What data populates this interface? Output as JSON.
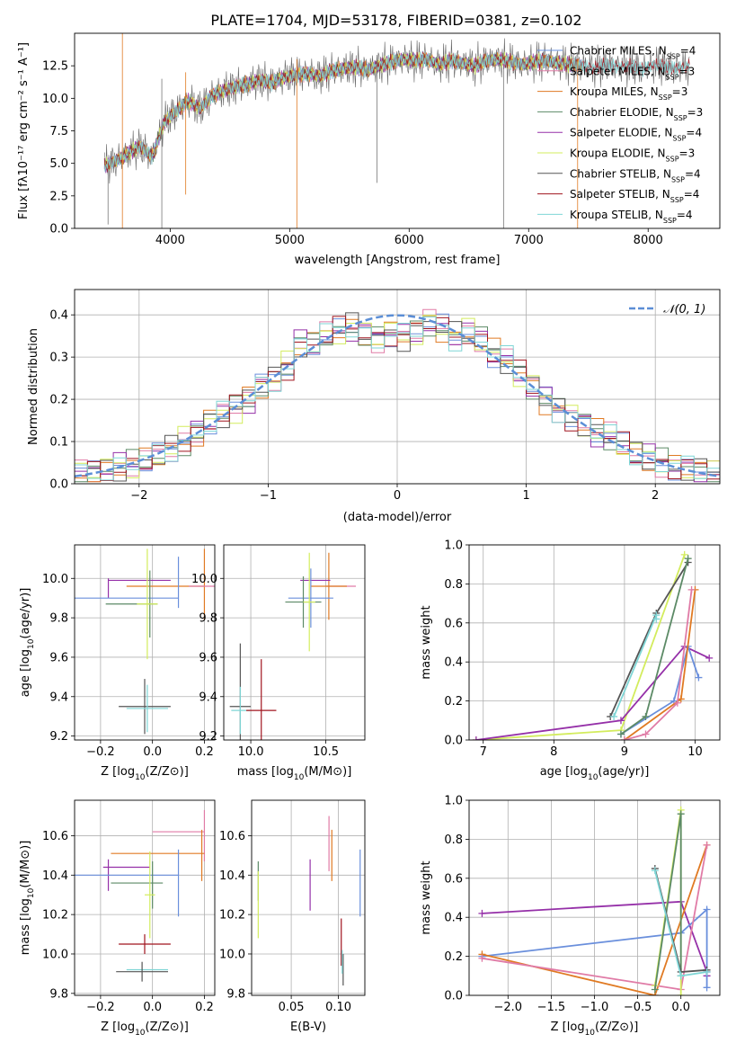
{
  "title": "PLATE=1704, MJD=53178, FIBERID=0381, z=0.102",
  "colors": {
    "chabrier_miles": "#6a8fdc",
    "salpeter_miles": "#e07ba6",
    "kroupa_miles": "#e07a23",
    "chabrier_elodie": "#5c8a66",
    "salpeter_elodie": "#9530a8",
    "kroupa_elodie": "#d3ec5d",
    "chabrier_stelib": "#555555",
    "salpeter_stelib": "#a0141e",
    "kroupa_stelib": "#7fd6d6",
    "normal": "#5b8ed6"
  },
  "legend": [
    {
      "label": "Chabrier MILES, N",
      "sub": "SSP",
      "tail": "=4",
      "key": "chabrier_miles"
    },
    {
      "label": "Salpeter MILES, N",
      "sub": "SSP",
      "tail": "=3",
      "key": "salpeter_miles"
    },
    {
      "label": "Kroupa MILES, N",
      "sub": "SSP",
      "tail": "=3",
      "key": "kroupa_miles"
    },
    {
      "label": "Chabrier ELODIE, N",
      "sub": "SSP",
      "tail": "=3",
      "key": "chabrier_elodie"
    },
    {
      "label": "Salpeter ELODIE, N",
      "sub": "SSP",
      "tail": "=4",
      "key": "salpeter_elodie"
    },
    {
      "label": "Kroupa ELODIE, N",
      "sub": "SSP",
      "tail": "=3",
      "key": "kroupa_elodie"
    },
    {
      "label": "Chabrier STELIB, N",
      "sub": "SSP",
      "tail": "=4",
      "key": "chabrier_stelib"
    },
    {
      "label": "Salpeter STELIB, N",
      "sub": "SSP",
      "tail": "=4",
      "key": "salpeter_stelib"
    },
    {
      "label": "Kroupa STELIB, N",
      "sub": "SSP",
      "tail": "=4",
      "key": "kroupa_stelib"
    }
  ],
  "chart_data": [
    {
      "id": "spectrum",
      "type": "line",
      "xlabel": "wavelength [Angstrom, rest frame]",
      "ylabel": "Flux [fλ10⁻¹⁷ erg cm⁻² s⁻¹ A⁻¹]",
      "xlim": [
        3200,
        8600
      ],
      "ylim": [
        0,
        15
      ],
      "xticks": [
        4000,
        5000,
        6000,
        7000,
        8000
      ],
      "xtick_labels": [
        "4000",
        "5000",
        "6000",
        "7000",
        "8000"
      ],
      "yticks": [
        0,
        2.5,
        5,
        7.5,
        10,
        12.5
      ],
      "ytick_labels": [
        "0.0",
        "2.5",
        "5.0",
        "7.5",
        "10.0",
        "12.5"
      ],
      "x": [
        3450,
        3550,
        3650,
        3750,
        3850,
        3950,
        4050,
        4150,
        4250,
        4350,
        4450,
        4550,
        4650,
        4750,
        4850,
        4950,
        5050,
        5150,
        5250,
        5350,
        5450,
        5550,
        5650,
        5750,
        5850,
        5950,
        6050,
        6150,
        6250,
        6350,
        6450,
        6550,
        6650,
        6750,
        6850,
        6950,
        7050,
        7150,
        7250,
        7350,
        7450,
        7550,
        7650,
        7750,
        7850,
        7950,
        8050,
        8150,
        8250,
        8350
      ],
      "y": [
        4.8,
        5.2,
        5.8,
        6.3,
        5.5,
        8.2,
        9.0,
        9.8,
        9.2,
        10.2,
        10.6,
        10.9,
        11.1,
        11.4,
        11.2,
        11.6,
        11.8,
        11.9,
        11.7,
        12.1,
        12.3,
        12.4,
        12.2,
        12.5,
        12.8,
        13.0,
        12.9,
        13.0,
        12.6,
        12.9,
        12.7,
        12.5,
        12.9,
        13.0,
        12.8,
        12.6,
        12.8,
        12.9,
        12.7,
        12.6,
        12.5,
        12.3,
        12.6,
        12.4,
        12.5,
        12.2,
        12.6,
        12.4,
        12.3,
        12.5
      ],
      "legend_position": "upper-right"
    },
    {
      "id": "residuals",
      "type": "histogram",
      "xlabel": "(data-model)/error",
      "ylabel": "Normed distribution",
      "xlim": [
        -2.5,
        2.5
      ],
      "ylim": [
        0,
        0.46
      ],
      "xticks": [
        -2,
        -1,
        0,
        1,
        2
      ],
      "xtick_labels": [
        "−2",
        "−1",
        "0",
        "1",
        "2"
      ],
      "yticks": [
        0,
        0.1,
        0.2,
        0.3,
        0.4
      ],
      "ytick_labels": [
        "0.0",
        "0.1",
        "0.2",
        "0.3",
        "0.4"
      ],
      "bin_edges": [
        -2.5,
        -2.4,
        -2.3,
        -2.2,
        -2.1,
        -2.0,
        -1.9,
        -1.8,
        -1.7,
        -1.6,
        -1.5,
        -1.4,
        -1.3,
        -1.2,
        -1.1,
        -1.0,
        -0.9,
        -0.8,
        -0.7,
        -0.6,
        -0.5,
        -0.4,
        -0.3,
        -0.2,
        -0.1,
        0.0,
        0.1,
        0.2,
        0.3,
        0.4,
        0.5,
        0.6,
        0.7,
        0.8,
        0.9,
        1.0,
        1.1,
        1.2,
        1.3,
        1.4,
        1.5,
        1.6,
        1.7,
        1.8,
        1.9,
        2.0,
        2.1,
        2.2,
        2.3,
        2.4,
        2.5
      ],
      "values": [
        0.025,
        0.028,
        0.035,
        0.04,
        0.045,
        0.055,
        0.065,
        0.08,
        0.1,
        0.12,
        0.15,
        0.165,
        0.18,
        0.2,
        0.23,
        0.25,
        0.28,
        0.33,
        0.33,
        0.35,
        0.36,
        0.37,
        0.355,
        0.345,
        0.36,
        0.35,
        0.36,
        0.38,
        0.365,
        0.35,
        0.36,
        0.34,
        0.31,
        0.29,
        0.26,
        0.23,
        0.2,
        0.18,
        0.16,
        0.14,
        0.12,
        0.11,
        0.09,
        0.07,
        0.06,
        0.05,
        0.04,
        0.035,
        0.03,
        0.025
      ],
      "normal_label": "𝒩(0, 1)",
      "legend_position": "upper-right"
    },
    {
      "id": "age-metallicity",
      "type": "errorbar",
      "xlabel_main": "Z [log",
      "xlabel_sub": "10",
      "xlabel_tail": "(Z/Z⊙)]",
      "ylabel_main": "age  [log",
      "ylabel_sub": "10",
      "ylabel_tail": "(age/yr)]",
      "xlim": [
        -0.3,
        0.24
      ],
      "ylim": [
        9.18,
        10.17
      ],
      "xticks": [
        -0.2,
        0.0,
        0.2
      ],
      "xtick_labels": [
        "−0.2",
        "0.0",
        "0.2"
      ],
      "yticks": [
        9.2,
        9.4,
        9.6,
        9.8,
        10.0
      ],
      "ytick_labels": [
        "9.2",
        "9.4",
        "9.6",
        "9.8",
        "10.0"
      ],
      "points": [
        {
          "key": "salpeter_elodie",
          "x": -0.05,
          "y": 9.99,
          "xerr": 0.12,
          "yerr": 0.0
        },
        {
          "key": "salpeter_elodie",
          "x": -0.17,
          "y": 9.95,
          "xerr": 0.0,
          "yerr": 0.05
        },
        {
          "key": "kroupa_miles",
          "x": 0.05,
          "y": 9.96,
          "xerr": 0.15,
          "yerr": 0.0
        },
        {
          "key": "kroupa_miles",
          "x": 0.2,
          "y": 9.97,
          "xerr": 0.0,
          "yerr": 0.18
        },
        {
          "key": "chabrier_miles",
          "x": -0.1,
          "y": 9.9,
          "xerr": 0.2,
          "yerr": 0.0
        },
        {
          "key": "chabrier_miles",
          "x": 0.1,
          "y": 9.98,
          "xerr": 0.0,
          "yerr": 0.13
        },
        {
          "key": "chabrier_elodie",
          "x": -0.08,
          "y": 9.87,
          "xerr": 0.1,
          "yerr": 0.0
        },
        {
          "key": "chabrier_elodie",
          "x": -0.01,
          "y": 9.87,
          "xerr": 0.0,
          "yerr": 0.17
        },
        {
          "key": "kroupa_elodie",
          "x": -0.02,
          "y": 9.87,
          "xerr": 0.04,
          "yerr": 0.28
        },
        {
          "key": "chabrier_stelib",
          "x": -0.03,
          "y": 9.35,
          "xerr": 0.1,
          "yerr": 0.14
        },
        {
          "key": "kroupa_stelib",
          "x": -0.02,
          "y": 9.34,
          "xerr": 0.08,
          "yerr": 0.12
        },
        {
          "key": "salpeter_miles",
          "x": 0.19,
          "y": 9.96,
          "xerr": 0.05,
          "yerr": 0.0
        }
      ]
    },
    {
      "id": "age-mass",
      "type": "errorbar",
      "xlabel_main": "mass [log",
      "xlabel_sub": "10",
      "xlabel_tail": "(M/M⊙)]",
      "xlim": [
        9.82,
        10.76
      ],
      "ylim": [
        9.18,
        10.17
      ],
      "xticks": [
        10.0,
        10.5
      ],
      "xtick_labels": [
        "10.0",
        "10.5"
      ],
      "yticks": [
        9.2,
        9.4,
        9.6,
        9.8,
        10.0
      ],
      "ytick_labels": [
        "9.2",
        "9.4",
        "9.6",
        "9.8",
        "10.0"
      ],
      "points": [
        {
          "key": "salpeter_miles",
          "x": 10.6,
          "y": 9.96,
          "xerr": 0.1,
          "yerr": 0.0
        },
        {
          "key": "kroupa_miles",
          "x": 10.52,
          "y": 9.96,
          "xerr": 0.12,
          "yerr": 0.17
        },
        {
          "key": "salpeter_elodie",
          "x": 10.43,
          "y": 9.99,
          "xerr": 0.1,
          "yerr": 0.0
        },
        {
          "key": "chabrier_miles",
          "x": 10.4,
          "y": 9.9,
          "xerr": 0.15,
          "yerr": 0.15
        },
        {
          "key": "chabrier_elodie",
          "x": 10.35,
          "y": 9.88,
          "xerr": 0.12,
          "yerr": 0.13
        },
        {
          "key": "kroupa_elodie",
          "x": 10.39,
          "y": 9.88,
          "xerr": 0.04,
          "yerr": 0.25
        },
        {
          "key": "chabrier_stelib",
          "x": 9.93,
          "y": 9.35,
          "xerr": 0.07,
          "yerr": 0.32
        },
        {
          "key": "kroupa_stelib",
          "x": 9.93,
          "y": 9.33,
          "xerr": 0.06,
          "yerr": 0.12
        },
        {
          "key": "salpeter_stelib",
          "x": 10.07,
          "y": 9.33,
          "xerr": 0.1,
          "yerr": 0.26
        }
      ]
    },
    {
      "id": "weight-age",
      "type": "line",
      "xlabel_main": "age  [log",
      "xlabel_sub": "10",
      "xlabel_tail": "(age/yr)]",
      "ylabel": "mass weight",
      "xlim": [
        6.8,
        10.35
      ],
      "ylim": [
        0,
        1.0
      ],
      "xticks": [
        7,
        8,
        9,
        10
      ],
      "xtick_labels": [
        "7",
        "8",
        "9",
        "10"
      ],
      "yticks": [
        0,
        0.2,
        0.4,
        0.6,
        0.8,
        1.0
      ],
      "ytick_labels": [
        "0.0",
        "0.2",
        "0.4",
        "0.6",
        "0.8",
        "1.0"
      ],
      "series": [
        {
          "key": "kroupa_elodie",
          "x": [
            6.9,
            8.95,
            9.85
          ],
          "y": [
            0.0,
            0.05,
            0.95
          ]
        },
        {
          "key": "chabrier_stelib",
          "x": [
            8.8,
            9.45,
            9.9
          ],
          "y": [
            0.12,
            0.65,
            0.91
          ]
        },
        {
          "key": "salpeter_elodie",
          "x": [
            6.9,
            8.95,
            9.85,
            10.2
          ],
          "y": [
            0.0,
            0.1,
            0.48,
            0.42
          ]
        },
        {
          "key": "chabrier_miles",
          "x": [
            8.95,
            9.7,
            9.9,
            10.05
          ],
          "y": [
            0.03,
            0.2,
            0.48,
            0.32
          ]
        },
        {
          "key": "kroupa_miles",
          "x": [
            9.0,
            9.8,
            10.0
          ],
          "y": [
            0.0,
            0.21,
            0.77
          ]
        },
        {
          "key": "salpeter_miles",
          "x": [
            9.0,
            9.3,
            9.75,
            9.95
          ],
          "y": [
            0.0,
            0.03,
            0.19,
            0.77
          ]
        },
        {
          "key": "chabrier_elodie",
          "x": [
            8.95,
            9.3,
            9.9
          ],
          "y": [
            0.03,
            0.12,
            0.93
          ]
        },
        {
          "key": "kroupa_stelib",
          "x": [
            8.85,
            9.45,
            9.45
          ],
          "y": [
            0.12,
            0.64,
            0.62
          ]
        }
      ]
    },
    {
      "id": "mass-metallicity",
      "type": "errorbar",
      "xlabel_main": "Z [log",
      "xlabel_sub": "10",
      "xlabel_tail": "(Z/Z⊙)]",
      "ylabel_main": "mass [log",
      "ylabel_sub": "10",
      "ylabel_tail": "(M/M⊙)]",
      "xlim": [
        -0.3,
        0.24
      ],
      "ylim": [
        9.79,
        10.78
      ],
      "xticks": [
        -0.2,
        0.0,
        0.2
      ],
      "xtick_labels": [
        "−0.2",
        "0.0",
        "0.2"
      ],
      "yticks": [
        9.8,
        10.0,
        10.2,
        10.4,
        10.6
      ],
      "ytick_labels": [
        "9.8",
        "10.0",
        "10.2",
        "10.4",
        "10.6"
      ],
      "points": [
        {
          "key": "salpeter_miles",
          "x": 0.1,
          "y": 10.62,
          "xerr": 0.1,
          "yerr": 0.0
        },
        {
          "key": "salpeter_miles",
          "x": 0.2,
          "y": 10.6,
          "xerr": 0.0,
          "yerr": 0.13
        },
        {
          "key": "kroupa_miles",
          "x": 0.02,
          "y": 10.51,
          "xerr": 0.18,
          "yerr": 0.0
        },
        {
          "key": "kroupa_miles",
          "x": 0.19,
          "y": 10.5,
          "xerr": 0.0,
          "yerr": 0.13
        },
        {
          "key": "salpeter_elodie",
          "x": -0.1,
          "y": 10.44,
          "xerr": 0.09,
          "yerr": 0.0
        },
        {
          "key": "salpeter_elodie",
          "x": -0.17,
          "y": 10.4,
          "xerr": 0.0,
          "yerr": 0.08
        },
        {
          "key": "chabrier_miles",
          "x": -0.1,
          "y": 10.4,
          "xerr": 0.2,
          "yerr": 0.0
        },
        {
          "key": "chabrier_miles",
          "x": 0.1,
          "y": 10.36,
          "xerr": 0.0,
          "yerr": 0.17
        },
        {
          "key": "chabrier_elodie",
          "x": -0.06,
          "y": 10.36,
          "xerr": 0.1,
          "yerr": 0.0
        },
        {
          "key": "chabrier_elodie",
          "x": 0.0,
          "y": 10.35,
          "xerr": 0.0,
          "yerr": 0.12
        },
        {
          "key": "kroupa_elodie",
          "x": -0.01,
          "y": 10.3,
          "xerr": 0.02,
          "yerr": 0.22
        },
        {
          "key": "salpeter_stelib",
          "x": -0.03,
          "y": 10.05,
          "xerr": 0.1,
          "yerr": 0.05
        },
        {
          "key": "kroupa_stelib",
          "x": -0.02,
          "y": 9.92,
          "xerr": 0.08,
          "yerr": 0.0
        },
        {
          "key": "chabrier_stelib",
          "x": -0.04,
          "y": 9.91,
          "xerr": 0.1,
          "yerr": 0.05
        }
      ]
    },
    {
      "id": "mass-ebv",
      "type": "errorbar",
      "xlabel": "E(B-V)",
      "xlim": [
        0.008,
        0.128
      ],
      "ylim": [
        9.79,
        10.78
      ],
      "xticks": [
        0.05,
        0.1
      ],
      "xtick_labels": [
        "0.05",
        "0.10"
      ],
      "yticks": [
        9.8,
        10.0,
        10.2,
        10.4,
        10.6
      ],
      "ytick_labels": [
        "9.8",
        "10.0",
        "10.2",
        "10.4",
        "10.6"
      ],
      "points": [
        {
          "key": "chabrier_elodie",
          "x": 0.015,
          "y": 10.37,
          "xerr": 0.0,
          "yerr": 0.1
        },
        {
          "key": "kroupa_elodie",
          "x": 0.015,
          "y": 10.25,
          "xerr": 0.0,
          "yerr": 0.17
        },
        {
          "key": "salpeter_elodie",
          "x": 0.07,
          "y": 10.35,
          "xerr": 0.0,
          "yerr": 0.13
        },
        {
          "key": "salpeter_miles",
          "x": 0.09,
          "y": 10.56,
          "xerr": 0.0,
          "yerr": 0.14
        },
        {
          "key": "kroupa_miles",
          "x": 0.093,
          "y": 10.5,
          "xerr": 0.0,
          "yerr": 0.13
        },
        {
          "key": "chabrier_miles",
          "x": 0.123,
          "y": 10.36,
          "xerr": 0.0,
          "yerr": 0.17
        },
        {
          "key": "salpeter_stelib",
          "x": 0.103,
          "y": 10.06,
          "xerr": 0.0,
          "yerr": 0.12
        },
        {
          "key": "chabrier_stelib",
          "x": 0.105,
          "y": 9.92,
          "xerr": 0.0,
          "yerr": 0.08
        },
        {
          "key": "kroupa_stelib",
          "x": 0.104,
          "y": 9.96,
          "xerr": 0.0,
          "yerr": 0.06
        }
      ]
    },
    {
      "id": "weight-metallicity",
      "type": "line",
      "xlabel_main": "Z [log",
      "xlabel_sub": "10",
      "xlabel_tail": "(Z/Z⊙)]",
      "ylabel": "mass weight",
      "xlim": [
        -2.45,
        0.45
      ],
      "ylim": [
        0,
        1.0
      ],
      "xticks": [
        -2.0,
        -1.5,
        -1.0,
        -0.5,
        0.0
      ],
      "xtick_labels": [
        "−2.0",
        "−1.5",
        "−1.0",
        "−0.5",
        "0.0"
      ],
      "yticks": [
        0,
        0.2,
        0.4,
        0.6,
        0.8,
        1.0
      ],
      "ytick_labels": [
        "0.0",
        "0.2",
        "0.4",
        "0.6",
        "0.8",
        "1.0"
      ],
      "series": [
        {
          "key": "salpeter_elodie",
          "x": [
            -2.3,
            0.0,
            0.3,
            0.3
          ],
          "y": [
            0.42,
            0.48,
            0.12,
            0.1
          ]
        },
        {
          "key": "chabrier_miles",
          "x": [
            -2.3,
            0.0,
            0.3,
            0.3
          ],
          "y": [
            0.2,
            0.32,
            0.44,
            0.04
          ]
        },
        {
          "key": "kroupa_miles",
          "x": [
            -2.3,
            -0.3,
            0.3
          ],
          "y": [
            0.21,
            0.0,
            0.77
          ]
        },
        {
          "key": "salpeter_miles",
          "x": [
            -2.3,
            0.0,
            0.3
          ],
          "y": [
            0.19,
            0.03,
            0.77
          ]
        },
        {
          "key": "kroupa_elodie",
          "x": [
            -0.3,
            0.0,
            0.0
          ],
          "y": [
            0.05,
            0.95,
            0.0
          ]
        },
        {
          "key": "chabrier_elodie",
          "x": [
            -0.3,
            0.0,
            0.0
          ],
          "y": [
            0.03,
            0.93,
            0.1
          ]
        },
        {
          "key": "chabrier_stelib",
          "x": [
            -0.3,
            0.0,
            0.3
          ],
          "y": [
            0.65,
            0.12,
            0.13
          ]
        },
        {
          "key": "kroupa_stelib",
          "x": [
            -0.3,
            0.0,
            0.3
          ],
          "y": [
            0.64,
            0.1,
            0.12
          ]
        }
      ]
    }
  ]
}
